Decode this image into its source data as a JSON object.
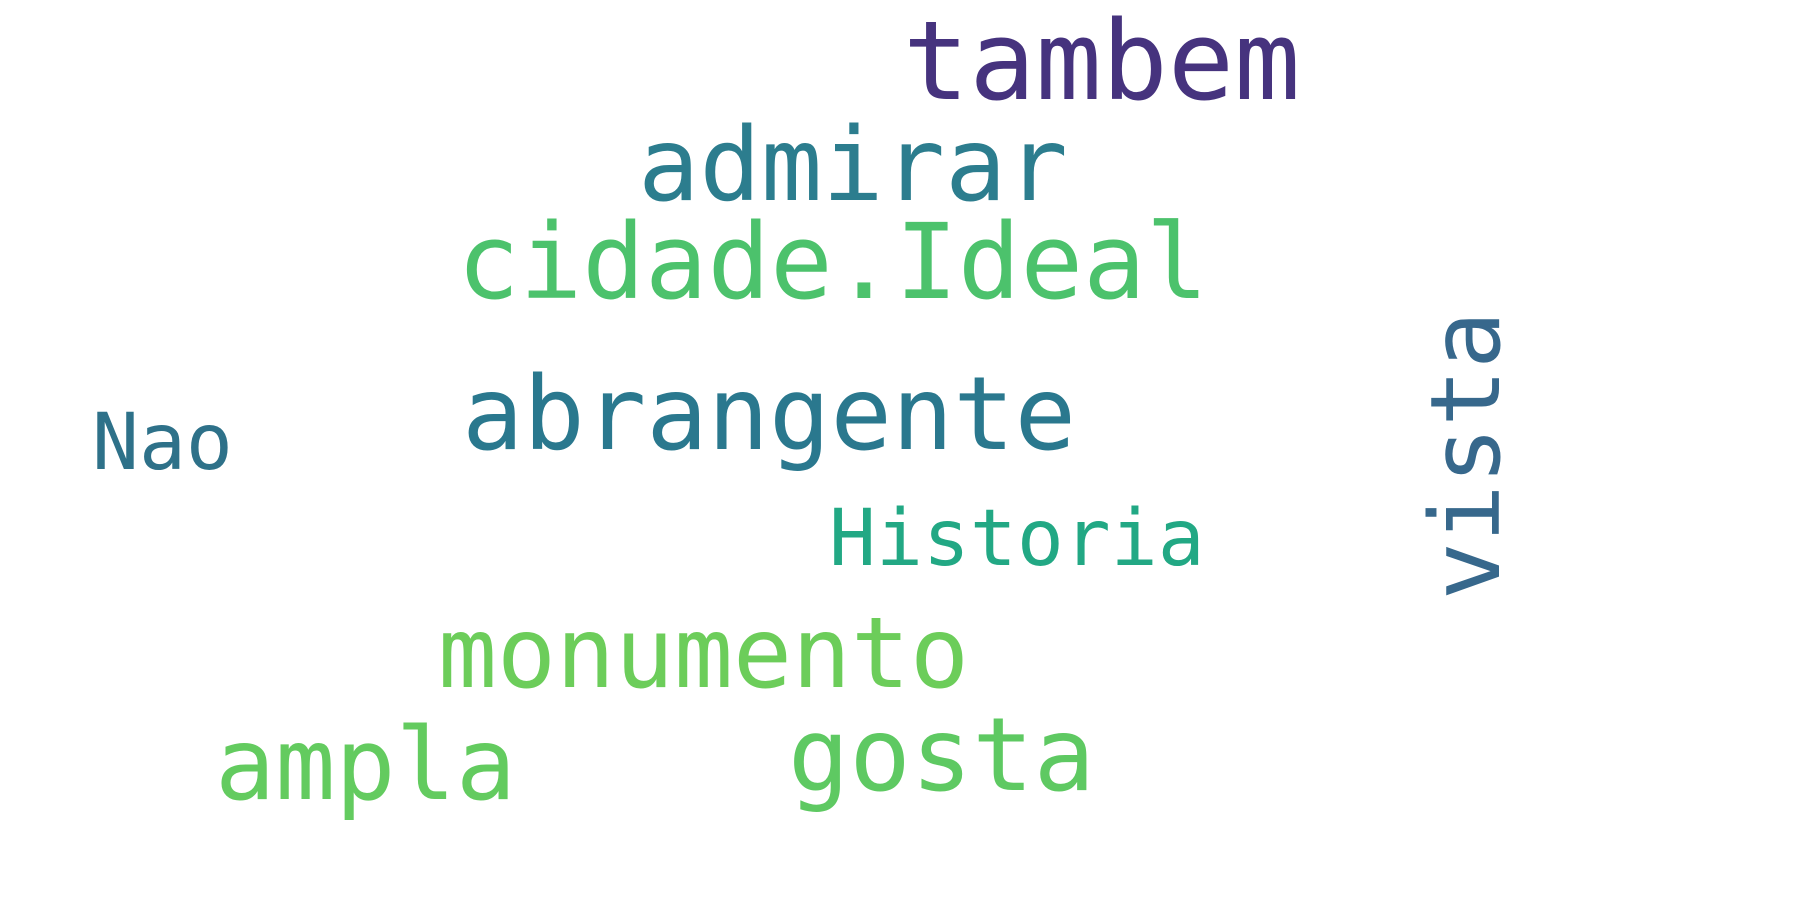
{
  "words": {
    "tambem": {
      "text": "tambem",
      "color": "#46337e"
    },
    "admirar": {
      "text": "admirar",
      "color": "#2c7d8e"
    },
    "cidade_ideal": {
      "text": "cidade.Ideal",
      "color": "#4cc26c"
    },
    "vista": {
      "text": "vista",
      "color": "#37688c"
    },
    "abrangente": {
      "text": "abrangente",
      "color": "#2a788e"
    },
    "nao": {
      "text": "Nao",
      "color": "#2e7189"
    },
    "historia": {
      "text": "Historia",
      "color": "#22a884"
    },
    "monumento": {
      "text": "monumento",
      "color": "#6ccd5a"
    },
    "ampla": {
      "text": "ampla",
      "color": "#63cb5f"
    },
    "gosta": {
      "text": "gosta",
      "color": "#5ec962"
    }
  }
}
